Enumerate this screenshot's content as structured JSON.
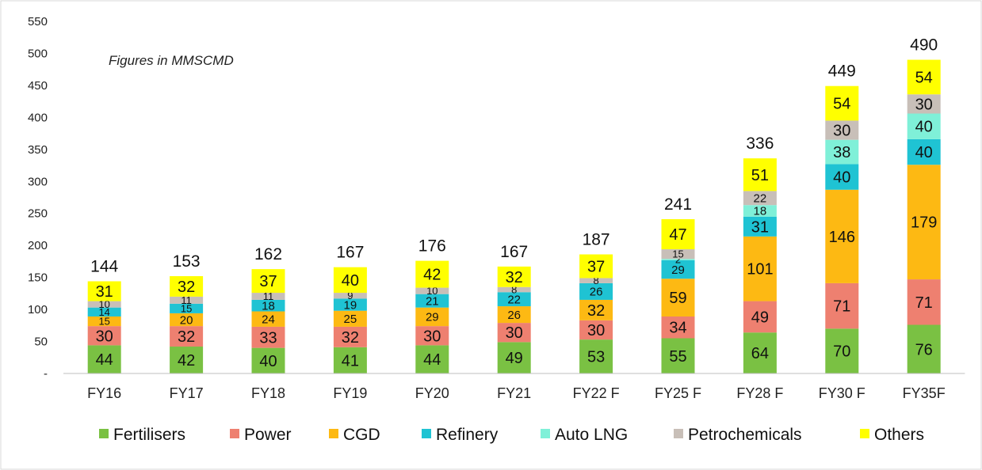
{
  "chart_data": {
    "type": "bar",
    "stacked": true,
    "annotation": "Figures in MMSCMD",
    "categories": [
      "FY16",
      "FY17",
      "FY18",
      "FY19",
      "FY20",
      "FY21",
      "FY22 F",
      "FY25 F",
      "FY28 F",
      "FY30 F",
      "FY35F"
    ],
    "totals": [
      144,
      153,
      162,
      167,
      176,
      167,
      187,
      241,
      336,
      449,
      490
    ],
    "series": [
      {
        "name": "Fertilisers",
        "color": "#7ac143",
        "values": [
          44,
          42,
          40,
          41,
          44,
          49,
          53,
          55,
          64,
          70,
          76
        ]
      },
      {
        "name": "Power",
        "color": "#ee8070",
        "values": [
          30,
          32,
          33,
          32,
          30,
          30,
          30,
          34,
          49,
          71,
          71
        ]
      },
      {
        "name": "CGD",
        "color": "#fdb913",
        "values": [
          15,
          20,
          24,
          25,
          29,
          26,
          32,
          59,
          101,
          146,
          179
        ]
      },
      {
        "name": "Refinery",
        "color": "#1fc3d3",
        "values": [
          14,
          15,
          18,
          19,
          21,
          22,
          26,
          29,
          31,
          40,
          40
        ]
      },
      {
        "name": "Auto LNG",
        "color": "#7ff0d8",
        "values": [
          0,
          0,
          0,
          0,
          0,
          0,
          0,
          2,
          18,
          38,
          40
        ]
      },
      {
        "name": "Petrochemicals",
        "color": "#c8bfb8",
        "values": [
          10,
          11,
          11,
          9,
          10,
          8,
          8,
          15,
          22,
          30,
          30
        ]
      },
      {
        "name": "Others",
        "color": "#ffff00",
        "values": [
          31,
          32,
          37,
          40,
          42,
          32,
          37,
          47,
          51,
          54,
          54
        ]
      }
    ],
    "y_ticks": [
      "-",
      "50",
      "100",
      "150",
      "200",
      "250",
      "300",
      "350",
      "400",
      "450",
      "500",
      "550"
    ],
    "ylim": [
      0,
      550
    ],
    "grid": false,
    "legend_position": "bottom"
  }
}
